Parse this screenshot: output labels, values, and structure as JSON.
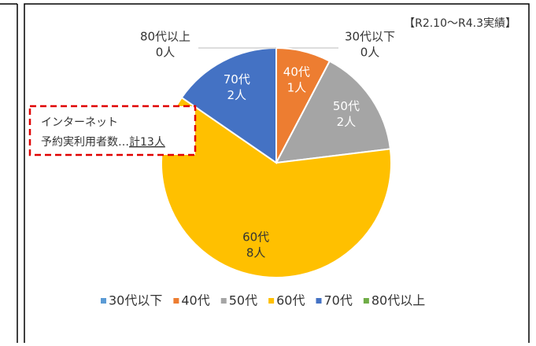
{
  "chart_data": {
    "type": "pie",
    "annotation": "【R2.10～R4.3実績】",
    "callout": {
      "line1": "インターネット",
      "line2": "予約実利用者数…",
      "total": "計13人"
    },
    "categories": [
      "30代以下",
      "40代",
      "50代",
      "60代",
      "70代",
      "80代以上"
    ],
    "values": [
      0,
      1,
      2,
      8,
      2,
      0
    ],
    "value_labels": [
      "0人",
      "1人",
      "2人",
      "8人",
      "2人",
      "0人"
    ],
    "colors": [
      "#5b9bd5",
      "#ed7d31",
      "#a5a5a5",
      "#ffc000",
      "#4472c4",
      "#70ad47"
    ],
    "legend": "bottom"
  }
}
